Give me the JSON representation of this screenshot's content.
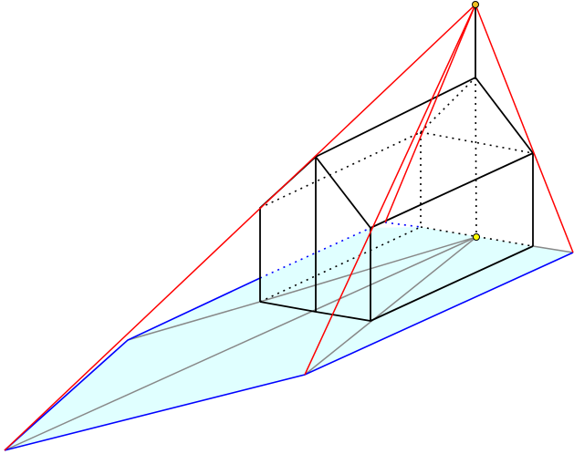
{
  "colors": {
    "shadow_fill": "#e0ffff",
    "shadow_edge": "#0000ff",
    "light_ray": "#ff0000",
    "projection_line": "#888888",
    "house_edge": "#000000",
    "light_source": "#f0c020",
    "foot_point": "#ffff00"
  }
}
